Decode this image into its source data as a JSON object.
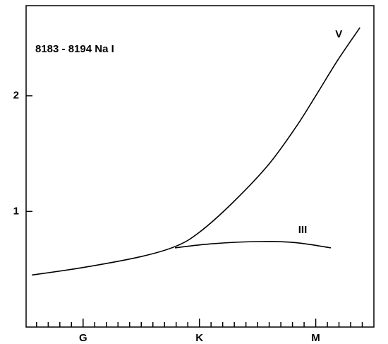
{
  "chart_data": {
    "type": "line",
    "title": "8183 - 8194  Na I",
    "xlim": [
      -0.49,
      2.5
    ],
    "ylim": [
      0,
      2.78
    ],
    "xticks": [
      {
        "value": 0,
        "label": "G"
      },
      {
        "value": 1,
        "label": "K"
      },
      {
        "value": 2,
        "label": "M"
      }
    ],
    "xminorticks": [
      -0.4,
      -0.3,
      -0.2,
      -0.1,
      0.1,
      0.2,
      0.3,
      0.4,
      0.5,
      0.6,
      0.7,
      0.8,
      0.9,
      1.1,
      1.2,
      1.3,
      1.4,
      1.5,
      1.6,
      1.7,
      1.8,
      1.9,
      2.1,
      2.2,
      2.3,
      2.4
    ],
    "yticks": [
      1,
      2
    ],
    "series": [
      {
        "name": "V",
        "color": "#000000",
        "x": [
          -0.44,
          0,
          0.5,
          0.8,
          1.0,
          1.28,
          1.59,
          1.83,
          2.0,
          2.19,
          2.38
        ],
        "values": [
          0.45,
          0.515,
          0.61,
          0.7,
          0.82,
          1.07,
          1.4,
          1.73,
          2.0,
          2.31,
          2.59
        ]
      },
      {
        "name": "III",
        "color": "#000000",
        "x": [
          0.79,
          1.1,
          1.53,
          1.83,
          2.13
        ],
        "values": [
          0.685,
          0.72,
          0.74,
          0.73,
          0.685
        ]
      }
    ]
  }
}
